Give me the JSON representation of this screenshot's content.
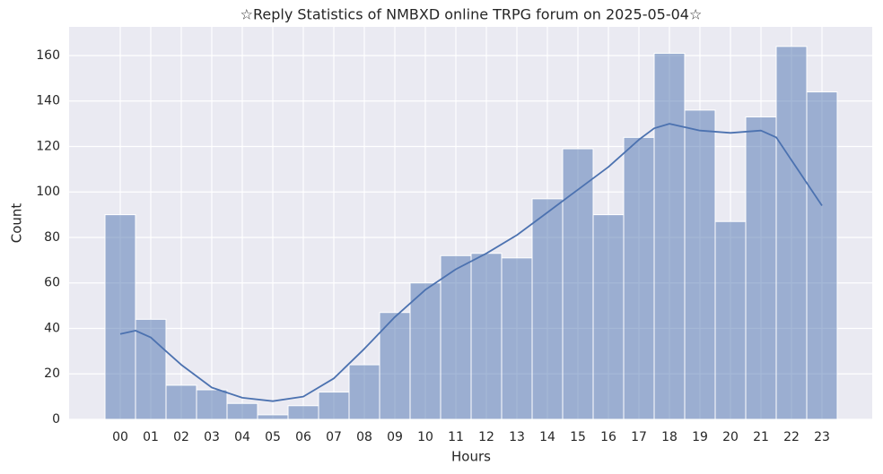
{
  "chart_data": {
    "type": "histogram",
    "title": "☆Reply Statistics of NMBXD online TRPG forum on 2025-05-04☆",
    "x_label": "Hours",
    "y_label": "Count",
    "categories": [
      "00",
      "01",
      "02",
      "03",
      "04",
      "05",
      "06",
      "07",
      "08",
      "09",
      "10",
      "11",
      "12",
      "13",
      "14",
      "15",
      "16",
      "17",
      "18",
      "19",
      "20",
      "21",
      "22",
      "23"
    ],
    "values": [
      90,
      44,
      15,
      13,
      7,
      2,
      6,
      12,
      24,
      47,
      60,
      72,
      73,
      71,
      97,
      119,
      90,
      124,
      161,
      136,
      87,
      133,
      164,
      144
    ],
    "color": "#4c72b0",
    "kde": {
      "color": "#4c72b0",
      "x": [
        0,
        0.5,
        1,
        1.5,
        2,
        3,
        4,
        5,
        6,
        7,
        8,
        9,
        10,
        11,
        12,
        13,
        14,
        15,
        16,
        17,
        17.5,
        18,
        19,
        20,
        21,
        21.5,
        22,
        22.5,
        23
      ],
      "values": [
        37.5,
        39,
        36,
        30,
        24,
        14,
        9.5,
        8,
        10,
        18,
        31,
        45,
        57,
        66,
        73,
        81,
        91,
        101,
        111,
        123,
        128,
        130,
        127,
        126,
        127,
        124,
        114,
        104,
        94
      ]
    },
    "ylim": [
      0,
      172.6
    ],
    "yticks": [
      0,
      20,
      40,
      60,
      80,
      100,
      120,
      140,
      160
    ],
    "grid": true
  }
}
